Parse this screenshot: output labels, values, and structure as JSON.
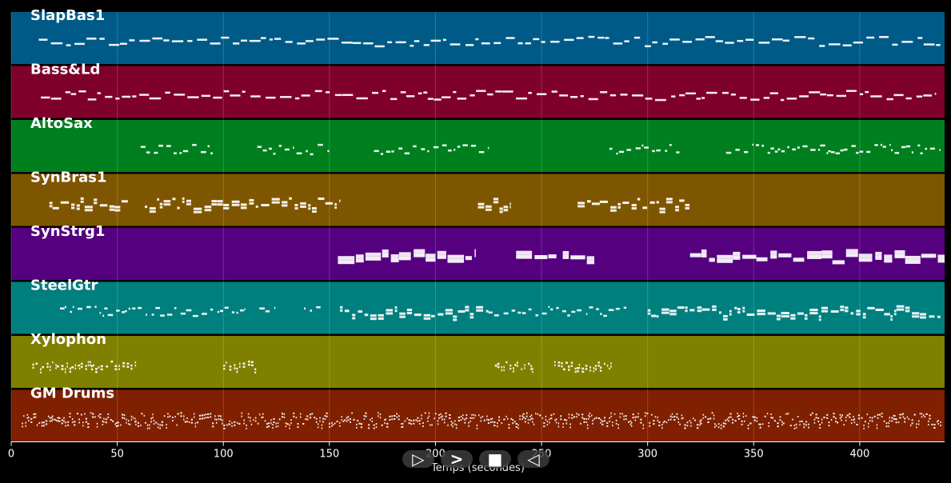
{
  "chart_data": {
    "type": "piano-roll",
    "xlabel": "Temps (secondes)",
    "xlim": [
      0,
      440
    ],
    "xticks": [
      0,
      50,
      100,
      150,
      200,
      250,
      300,
      350,
      400
    ],
    "grid": true,
    "tracks": [
      {
        "name": "SlapBas1",
        "color": "#005a87",
        "segments": [
          [
            13,
            438,
            "continuous-thin"
          ]
        ]
      },
      {
        "name": "Bass&Ld",
        "color": "#7f002a",
        "segments": [
          [
            14,
            436,
            "continuous-thin"
          ]
        ]
      },
      {
        "name": "AltoSax",
        "color": "#007f1f",
        "segments": [
          [
            61,
            95,
            "sparse"
          ],
          [
            116,
            151,
            "sparse"
          ],
          [
            171,
            225,
            "sparse"
          ],
          [
            282,
            315,
            "sparse"
          ],
          [
            337,
            438,
            "sparse"
          ]
        ]
      },
      {
        "name": "SynBras1",
        "color": "#7f5600",
        "segments": [
          [
            18,
            55,
            "chords"
          ],
          [
            63,
            155,
            "chords"
          ],
          [
            220,
            235,
            "chords"
          ],
          [
            267,
            320,
            "chords"
          ]
        ]
      },
      {
        "name": "SynStrg1",
        "color": "#55007f",
        "segments": [
          [
            154,
            219,
            "thick"
          ],
          [
            238,
            257,
            "thick"
          ],
          [
            260,
            275,
            "thick"
          ],
          [
            320,
            440,
            "thick"
          ]
        ]
      },
      {
        "name": "SteelGtr",
        "color": "#007f7f",
        "segments": [
          [
            23,
            110,
            "sparse"
          ],
          [
            117,
            124,
            "sparse"
          ],
          [
            138,
            147,
            "sparse"
          ],
          [
            155,
            225,
            "chords"
          ],
          [
            225,
            270,
            "sparse"
          ],
          [
            271,
            290,
            "sparse"
          ],
          [
            300,
            438,
            "chords"
          ]
        ]
      },
      {
        "name": "Xylophon",
        "color": "#7f7f00",
        "segments": [
          [
            10,
            59,
            "dense"
          ],
          [
            100,
            116,
            "dense"
          ],
          [
            228,
            246,
            "dense"
          ],
          [
            256,
            283,
            "dense"
          ]
        ]
      },
      {
        "name": "GM Drums",
        "color": "#7f2000",
        "segments": [
          [
            5,
            438,
            "drums"
          ]
        ]
      }
    ]
  },
  "controls": [
    {
      "name": "play-button",
      "glyph": "▷"
    },
    {
      "name": "forward-button",
      "glyph": ">"
    },
    {
      "name": "stop-button",
      "glyph": "■"
    },
    {
      "name": "back-button",
      "glyph": "◁"
    }
  ]
}
